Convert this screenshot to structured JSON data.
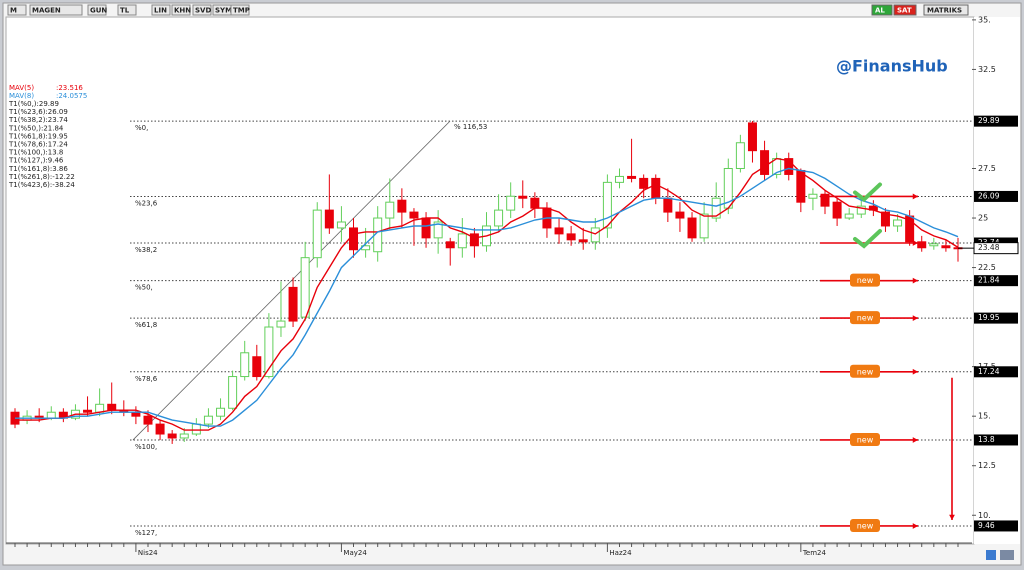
{
  "toolbar": {
    "items": [
      "M",
      "MAGEN",
      "GUN",
      "TL",
      "LIN",
      "KHN",
      "SVD",
      "SYM",
      "TMP"
    ],
    "buttons": [
      "AL",
      "SAT",
      "MATRIKS"
    ]
  },
  "chart_data": {
    "type": "candlestick",
    "watermark": "@FinansHub",
    "categories": [
      null,
      null,
      null,
      null,
      null,
      null,
      null,
      null,
      null,
      null,
      "Nis24",
      null,
      null,
      null,
      null,
      null,
      null,
      null,
      null,
      null,
      null,
      null,
      null,
      null,
      null,
      null,
      null,
      "May24",
      null,
      null,
      null,
      null,
      null,
      null,
      null,
      null,
      null,
      null,
      null,
      null,
      null,
      null,
      null,
      null,
      null,
      null,
      null,
      null,
      null,
      "Haz24",
      null,
      null,
      null,
      null,
      null,
      null,
      null,
      null,
      null,
      null,
      null,
      null,
      null,
      null,
      null,
      "Tem24",
      null,
      null,
      null,
      null,
      null,
      null,
      null,
      null,
      null,
      null,
      null,
      null,
      null
    ],
    "open": [
      15.2,
      14.8,
      15.0,
      14.9,
      15.2,
      14.9,
      15.3,
      15.2,
      15.6,
      15.3,
      15.2,
      15.0,
      14.6,
      14.1,
      13.9,
      14.1,
      14.6,
      15.0,
      15.4,
      17.0,
      18.0,
      17.0,
      19.5,
      21.5,
      20.0,
      23.0,
      25.4,
      24.5,
      24.5,
      23.4,
      23.3,
      25.0,
      25.9,
      25.3,
      25.0,
      24.0,
      23.8,
      23.5,
      24.2,
      23.6,
      24.6,
      25.4,
      26.1,
      26.0,
      25.5,
      24.5,
      24.2,
      23.9,
      23.8,
      24.5,
      26.8,
      27.1,
      27.0,
      27.0,
      26.0,
      25.3,
      25.0,
      24.0,
      25.0,
      25.5,
      27.5,
      29.8,
      28.4,
      27.2,
      28.0,
      27.4,
      26.0,
      26.2,
      25.8,
      25.0,
      25.2,
      25.6,
      25.3,
      24.6,
      25.1,
      23.8,
      23.6,
      23.6,
      23.5
    ],
    "high": [
      15.4,
      15.3,
      15.4,
      15.5,
      15.4,
      15.6,
      16.0,
      16.4,
      16.7,
      15.8,
      15.5,
      15.3,
      14.8,
      14.3,
      14.4,
      14.9,
      15.4,
      15.9,
      17.3,
      18.8,
      18.6,
      20.2,
      21.8,
      22.0,
      23.8,
      25.8,
      27.2,
      25.6,
      25.0,
      24.5,
      25.6,
      27.0,
      26.5,
      25.5,
      25.3,
      25.4,
      24.0,
      25.0,
      24.5,
      25.3,
      26.2,
      26.8,
      26.9,
      26.3,
      25.8,
      25.0,
      24.6,
      24.5,
      25.0,
      27.2,
      27.5,
      29.0,
      27.2,
      27.2,
      26.5,
      25.8,
      25.3,
      25.8,
      26.8,
      28.0,
      29.2,
      29.9,
      28.9,
      28.3,
      28.3,
      27.5,
      26.5,
      26.4,
      26.0,
      25.5,
      26.0,
      25.9,
      25.5,
      25.2,
      25.4,
      24.1,
      24.0,
      23.9,
      24.0
    ],
    "low": [
      14.4,
      14.6,
      14.7,
      14.8,
      14.7,
      14.8,
      15.0,
      15.0,
      15.1,
      15.0,
      14.6,
      14.2,
      13.8,
      13.6,
      13.7,
      14.0,
      14.4,
      14.8,
      15.3,
      16.8,
      16.8,
      16.9,
      19.0,
      19.5,
      19.8,
      22.5,
      24.2,
      23.8,
      23.0,
      23.0,
      22.8,
      24.4,
      24.5,
      23.6,
      23.5,
      23.2,
      22.6,
      23.0,
      23.0,
      23.3,
      24.3,
      25.0,
      25.5,
      25.0,
      24.0,
      23.7,
      23.6,
      23.4,
      23.4,
      24.0,
      26.5,
      26.8,
      26.0,
      25.7,
      24.8,
      24.3,
      23.8,
      23.8,
      24.8,
      25.2,
      27.3,
      27.8,
      26.9,
      27.0,
      26.9,
      25.3,
      25.4,
      25.2,
      24.6,
      24.9,
      25.0,
      25.1,
      24.3,
      24.3,
      23.6,
      23.3,
      23.4,
      23.3,
      22.8
    ],
    "close": [
      14.6,
      15.0,
      14.9,
      15.2,
      14.9,
      15.3,
      15.2,
      15.6,
      15.3,
      15.2,
      15.0,
      14.6,
      14.1,
      13.9,
      14.1,
      14.6,
      15.0,
      15.4,
      17.0,
      18.2,
      17.0,
      19.5,
      19.8,
      19.8,
      23.0,
      25.4,
      24.5,
      24.8,
      23.4,
      23.6,
      25.0,
      25.8,
      25.3,
      25.0,
      24.0,
      24.8,
      23.5,
      24.2,
      23.6,
      24.6,
      25.4,
      26.1,
      26.0,
      25.5,
      24.5,
      24.2,
      23.9,
      23.8,
      24.5,
      26.8,
      27.1,
      27.0,
      26.5,
      26.0,
      25.3,
      25.0,
      24.0,
      25.2,
      26.0,
      27.5,
      28.8,
      28.4,
      27.2,
      28.0,
      27.2,
      25.8,
      26.2,
      25.6,
      25.0,
      25.2,
      25.6,
      25.4,
      24.6,
      24.9,
      23.8,
      23.5,
      23.7,
      23.5,
      23.48
    ],
    "up_color": "#62cf5a",
    "down_color": "#e8000b",
    "series": [
      {
        "name": "MAV(5)",
        "last_label": ":23.516",
        "color": "#e8000b",
        "values": [
          14.8,
          14.8,
          14.8,
          14.9,
          14.9,
          15.1,
          15.1,
          15.2,
          15.3,
          15.3,
          15.3,
          15.1,
          14.8,
          14.6,
          14.3,
          14.3,
          14.3,
          14.6,
          15.2,
          16.0,
          16.5,
          17.4,
          18.3,
          18.9,
          19.9,
          21.5,
          22.5,
          23.5,
          24.2,
          24.3,
          24.3,
          24.5,
          24.6,
          24.9,
          25.0,
          25.0,
          24.5,
          24.3,
          24.0,
          24.1,
          24.3,
          24.8,
          25.1,
          25.5,
          25.5,
          25.3,
          24.8,
          24.4,
          24.2,
          24.6,
          25.3,
          25.8,
          26.4,
          26.7,
          26.4,
          26.0,
          25.4,
          25.1,
          25.1,
          25.5,
          26.3,
          27.2,
          27.6,
          28.0,
          27.9,
          27.3,
          26.9,
          26.4,
          26.0,
          25.6,
          25.5,
          25.4,
          25.2,
          25.1,
          24.9,
          24.4,
          24.1,
          23.9,
          23.52
        ]
      },
      {
        "name": "MAV(8)",
        "last_label": ":24.0575",
        "color": "#2b8fd9",
        "values": [
          14.9,
          14.9,
          14.9,
          14.9,
          14.9,
          15.0,
          15.0,
          15.1,
          15.2,
          15.2,
          15.2,
          15.2,
          15.0,
          14.8,
          14.7,
          14.6,
          14.5,
          14.5,
          14.8,
          15.3,
          15.8,
          16.6,
          17.4,
          18.1,
          19.1,
          20.2,
          21.3,
          22.5,
          23.1,
          23.7,
          24.3,
          24.4,
          24.5,
          24.6,
          24.6,
          24.7,
          24.6,
          24.5,
          24.4,
          24.4,
          24.4,
          24.5,
          24.7,
          24.9,
          25.0,
          25.0,
          24.9,
          24.8,
          24.8,
          25.0,
          25.3,
          25.6,
          25.9,
          26.0,
          26.0,
          25.9,
          25.8,
          25.7,
          25.6,
          25.8,
          26.1,
          26.5,
          26.9,
          27.3,
          27.5,
          27.4,
          27.3,
          27.0,
          26.6,
          26.2,
          25.9,
          25.7,
          25.4,
          25.3,
          25.1,
          24.8,
          24.5,
          24.3,
          24.06
        ]
      }
    ],
    "fib_levels": [
      {
        "legend": "T1(%0,):29.89",
        "label": "%0,",
        "value": 29.89
      },
      {
        "legend": "T1(%23,6):26.09",
        "label": "%23,6",
        "value": 26.09
      },
      {
        "legend": "T1(%38,2):23.74",
        "label": "%38,2",
        "value": 23.74
      },
      {
        "legend": "T1(%50,):21.84",
        "label": "%50,",
        "value": 21.84
      },
      {
        "legend": "T1(%61,8):19.95",
        "label": "%61,8",
        "value": 19.95
      },
      {
        "legend": "T1(%78,6):17.24",
        "label": "%78,6",
        "value": 17.24
      },
      {
        "legend": "T1(%100,):13.8",
        "label": "%100,",
        "value": 13.8
      },
      {
        "legend": "T1(%127,):9.46",
        "label": "%127,",
        "value": 9.46
      },
      {
        "legend": "T1(%161,8):3.86",
        "value": 3.86
      },
      {
        "legend": "T1(%261,8):-12.22",
        "value": -12.22
      },
      {
        "legend": "T1(%423,6):-38.24",
        "value": -38.24
      }
    ],
    "last_price": 23.48,
    "trend_label": "% 116,53",
    "new_labels": [
      "new",
      "new",
      "new",
      "new",
      "new"
    ],
    "ylim": [
      8.6,
      35.6
    ],
    "yticks": [
      {
        "value": 35,
        "label": "35."
      },
      32.5,
      27.5,
      25,
      22.5,
      17.5,
      {
        "value": 15,
        "label": "15."
      },
      12.5,
      {
        "value": 10,
        "label": "10."
      }
    ]
  }
}
